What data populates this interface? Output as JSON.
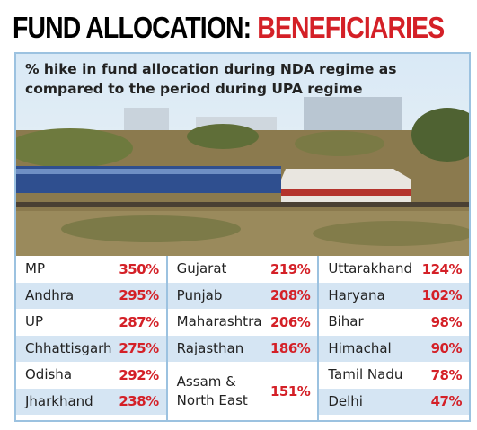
{
  "header": {
    "title": "FUND ALLOCATION:",
    "highlight": "BENEFICIARIES"
  },
  "subtitle": "% hike in fund allocation during NDA regime as compared to the period during UPA regime",
  "table": {
    "columns": [
      [
        {
          "name": "MP",
          "value": "350%"
        },
        {
          "name": "Andhra",
          "value": "295%"
        },
        {
          "name": "UP",
          "value": "287%"
        },
        {
          "name": "Chhattisgarh",
          "value": "275%"
        },
        {
          "name": "Odisha",
          "value": "292%"
        },
        {
          "name": "Jharkhand",
          "value": "238%"
        }
      ],
      [
        {
          "name": "Gujarat",
          "value": "219%"
        },
        {
          "name": "Punjab",
          "value": "208%"
        },
        {
          "name": "Maharashtra",
          "value": "206%"
        },
        {
          "name": "Rajasthan",
          "value": "186%"
        },
        {
          "name": "Assam &\nNorth East",
          "value": "151%"
        }
      ],
      [
        {
          "name": "Uttarakhand",
          "value": "124%"
        },
        {
          "name": "Haryana",
          "value": "102%"
        },
        {
          "name": "Bihar",
          "value": "98%"
        },
        {
          "name": "Himachal",
          "value": "90%"
        },
        {
          "name": "Tamil Nadu",
          "value": "78%"
        },
        {
          "name": "Delhi",
          "value": "47%"
        }
      ]
    ]
  }
}
